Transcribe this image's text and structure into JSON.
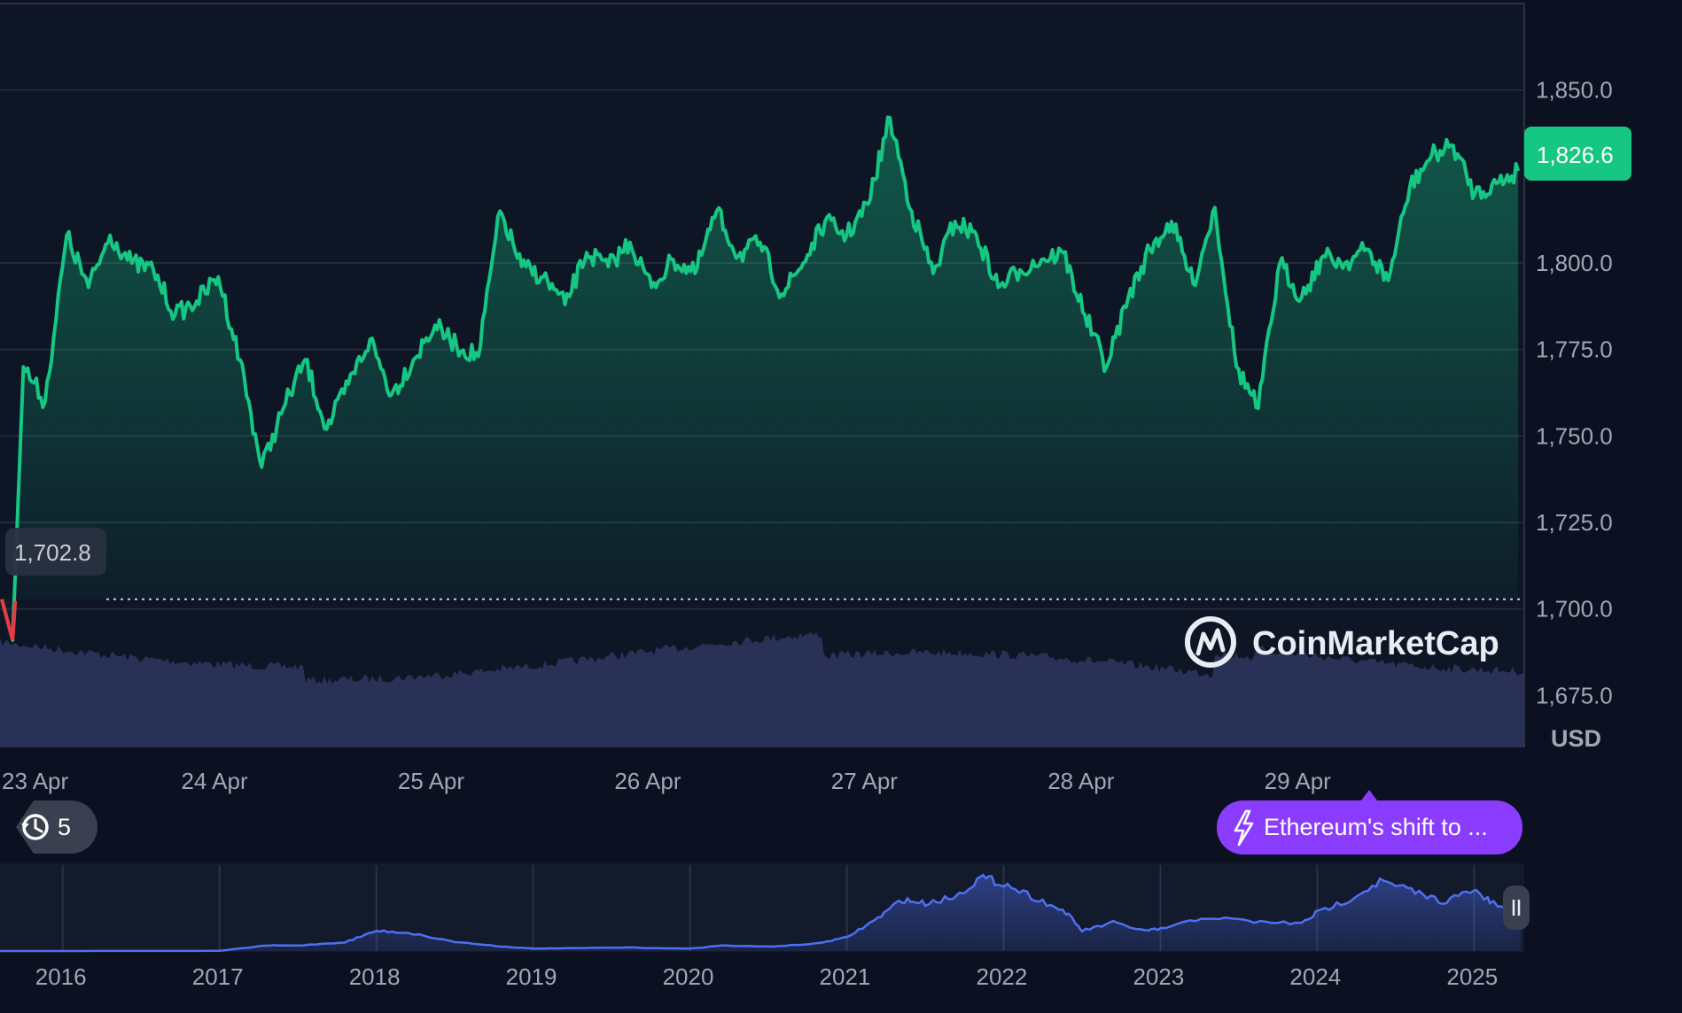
{
  "chart_data": [
    {
      "type": "line",
      "currency": "USD",
      "x_labels": [
        "23 Apr",
        "24 Apr",
        "25 Apr",
        "26 Apr",
        "27 Apr",
        "28 Apr",
        "29 Apr"
      ],
      "y_ticks": [
        "1,850.0",
        "1,800.0",
        "1,775.0",
        "1,750.0",
        "1,725.0",
        "1,700.0",
        "1,675.0"
      ],
      "y_tick_values": [
        1850,
        1800,
        1775,
        1750,
        1725,
        1700,
        1675
      ],
      "ylim": [
        1660,
        1875
      ],
      "current_price": 1826.6,
      "current_price_label": "1,826.6",
      "open_price": 1702.8,
      "open_price_label": "1,702.8",
      "line_color": "#16c784",
      "down_color": "#ea3943",
      "series": [
        {
          "x": [
            0,
            0.05,
            0.1,
            0.2,
            0.3,
            0.4,
            0.5,
            0.6,
            0.7,
            0.8,
            0.9,
            1.0,
            1.1,
            1.2,
            1.3,
            1.4,
            1.5,
            1.6,
            1.7,
            1.8,
            1.9,
            2.0,
            2.1,
            2.2,
            2.3,
            2.4,
            2.5,
            2.6,
            2.7,
            2.8,
            2.9,
            3.0,
            3.1,
            3.2,
            3.3,
            3.4,
            3.5,
            3.6,
            3.7,
            3.8,
            3.9,
            4.0,
            4.1,
            4.2,
            4.3,
            4.4,
            4.5,
            4.6,
            4.7,
            4.8,
            4.9,
            5.0,
            5.1,
            5.2,
            5.3,
            5.4,
            5.5,
            5.6,
            5.7,
            5.8,
            5.9,
            6.0,
            6.1,
            6.2,
            6.3,
            6.4,
            6.5,
            6.6,
            6.7,
            6.8,
            6.9,
            7.0
          ],
          "values": [
            1702.8,
            1691,
            1770,
            1760,
            1808,
            1793,
            1808,
            1800,
            1798,
            1785,
            1789,
            1796,
            1772,
            1741,
            1758,
            1772,
            1752,
            1765,
            1778,
            1762,
            1772,
            1782,
            1776,
            1773,
            1815,
            1799,
            1796,
            1788,
            1803,
            1799,
            1806,
            1793,
            1801,
            1797,
            1815,
            1802,
            1806,
            1791,
            1800,
            1812,
            1808,
            1817,
            1842,
            1815,
            1797,
            1812,
            1808,
            1793,
            1798,
            1801,
            1803,
            1785,
            1770,
            1790,
            1804,
            1812,
            1794,
            1816,
            1770,
            1758,
            1800,
            1790,
            1802,
            1800,
            1804,
            1795,
            1822,
            1831,
            1834,
            1820,
            1823,
            1826.6
          ]
        }
      ]
    },
    {
      "type": "area",
      "x_labels": [
        "2016",
        "2017",
        "2018",
        "2019",
        "2020",
        "2021",
        "2022",
        "2023",
        "2024",
        "2025"
      ],
      "line_color": "#4f6ff0",
      "series": [
        {
          "x": [
            2015.6,
            2016.0,
            2016.5,
            2017.0,
            2017.3,
            2017.5,
            2017.8,
            2018.0,
            2018.2,
            2018.5,
            2018.8,
            2019.0,
            2019.3,
            2019.6,
            2020.0,
            2020.2,
            2020.5,
            2020.8,
            2021.0,
            2021.2,
            2021.35,
            2021.5,
            2021.7,
            2021.85,
            2022.0,
            2022.2,
            2022.4,
            2022.5,
            2022.7,
            2022.9,
            2023.0,
            2023.3,
            2023.6,
            2023.9,
            2024.0,
            2024.2,
            2024.4,
            2024.6,
            2024.8,
            2025.0,
            2025.1,
            2025.3
          ],
          "values": [
            1,
            1,
            5,
            8,
            300,
            300,
            480,
            1100,
            1000,
            500,
            250,
            130,
            160,
            190,
            130,
            300,
            240,
            400,
            740,
            1800,
            2800,
            2600,
            3000,
            4000,
            3700,
            2900,
            2100,
            1100,
            1550,
            1100,
            1200,
            1850,
            1600,
            1500,
            2100,
            2800,
            3800,
            3300,
            2700,
            3300,
            2700,
            1800
          ]
        }
      ]
    }
  ],
  "badges": {
    "history_count": "5",
    "event_label": "Ethereum's shift to ...",
    "currency": "USD"
  },
  "brand": {
    "name": "CoinMarketCap"
  }
}
